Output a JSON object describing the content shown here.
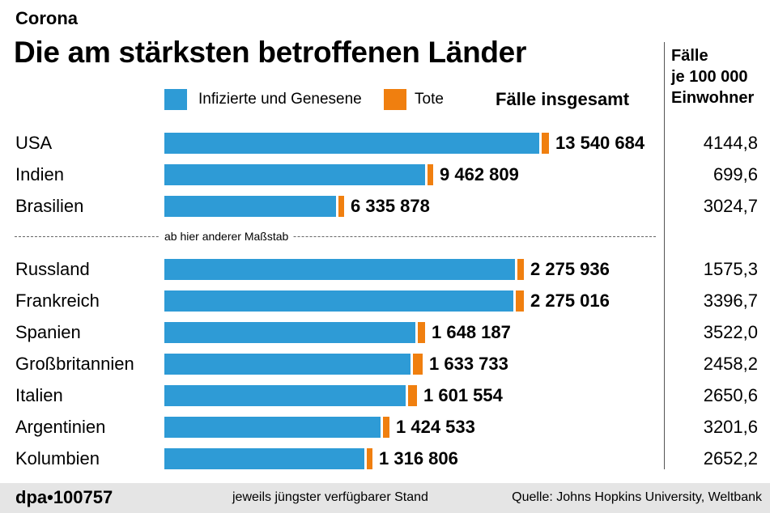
{
  "header": {
    "kicker": "Corona",
    "title": "Die am stärksten betroffenen Länder"
  },
  "legend": {
    "infected_label": "Infizierte und Genesene",
    "deaths_label": "Tote",
    "total_heading": "Fälle insgesamt"
  },
  "rate_heading": {
    "line1": "Fälle",
    "line2": "je 100 000",
    "line3": "Einwohner"
  },
  "scale_note": "ab hier anderer Maßstab",
  "colors": {
    "infected": "#2e9bd6",
    "deaths": "#f07f0f",
    "footer_bg": "#e5e5e5"
  },
  "chart_data": {
    "type": "bar",
    "orientation": "horizontal",
    "stacked": true,
    "title": "Die am stärksten betroffenen Länder",
    "groups": [
      {
        "scale": "A",
        "rows": [
          {
            "country": "USA",
            "total": 13540684,
            "total_label": "13 540 684",
            "deaths_est": 268000,
            "rate": "4144,8"
          },
          {
            "country": "Indien",
            "total": 9462809,
            "total_label": "9 462 809",
            "deaths_est": 138000,
            "rate": "699,6"
          },
          {
            "country": "Brasilien",
            "total": 6335878,
            "total_label": "6 335 878",
            "deaths_est": 174000,
            "rate": "3024,7"
          }
        ]
      },
      {
        "scale": "B",
        "rows": [
          {
            "country": "Russland",
            "total": 2275936,
            "total_label": "2 275 936",
            "deaths_est": 39500,
            "rate": "1575,3"
          },
          {
            "country": "Frankreich",
            "total": 2275016,
            "total_label": "2 275 016",
            "deaths_est": 52700,
            "rate": "3396,7"
          },
          {
            "country": "Spanien",
            "total": 1648187,
            "total_label": "1 648 187",
            "deaths_est": 45000,
            "rate": "3522,0"
          },
          {
            "country": "Großbritannien",
            "total": 1633733,
            "total_label": "1 633 733",
            "deaths_est": 59000,
            "rate": "2458,2"
          },
          {
            "country": "Italien",
            "total": 1601554,
            "total_label": "1 601 554",
            "deaths_est": 55600,
            "rate": "2650,6"
          },
          {
            "country": "Argentinien",
            "total": 1424533,
            "total_label": "1 424 533",
            "deaths_est": 38500,
            "rate": "3201,6"
          },
          {
            "country": "Kolumbien",
            "total": 1316806,
            "total_label": "1 316 806",
            "deaths_est": 36900,
            "rate": "2652,2"
          }
        ]
      }
    ],
    "series": [
      {
        "name": "Infizierte und Genesene"
      },
      {
        "name": "Tote"
      }
    ]
  },
  "footer": {
    "agency": "dpa•100757",
    "stand": "jeweils jüngster verfügbarer Stand",
    "source": "Quelle: Johns Hopkins University, Weltbank"
  }
}
